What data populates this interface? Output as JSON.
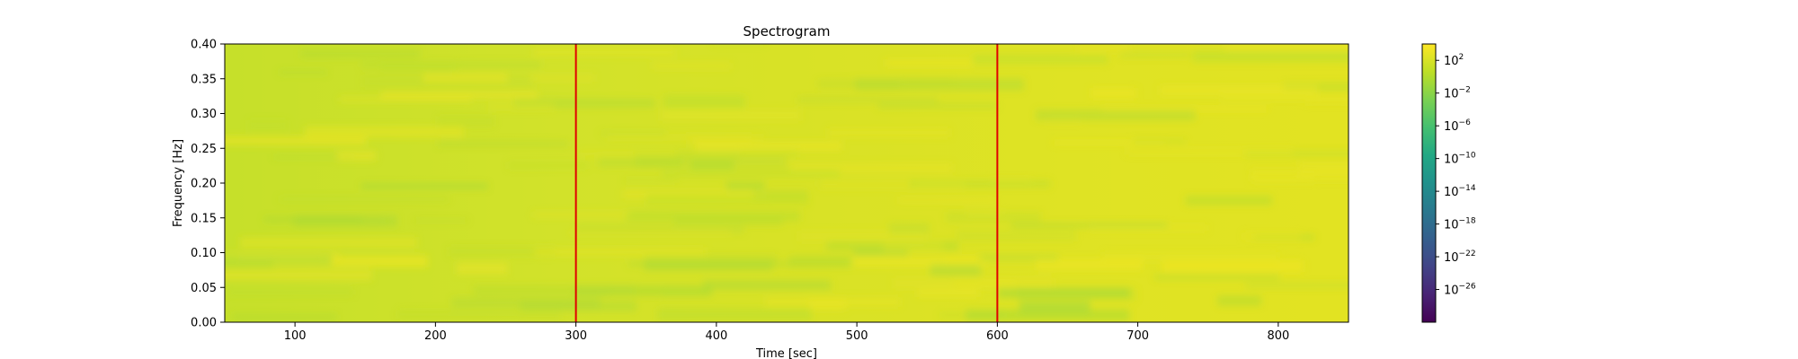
{
  "chart_data": {
    "type": "heatmap",
    "title": "Spectrogram",
    "xlabel": "Time [sec]",
    "ylabel": "Frequency [Hz]",
    "xlim": [
      50,
      850
    ],
    "ylim": [
      0.0,
      0.4
    ],
    "x_ticks": [
      100,
      200,
      300,
      400,
      500,
      600,
      700,
      800
    ],
    "y_ticks": [
      "0.00",
      "0.05",
      "0.10",
      "0.15",
      "0.20",
      "0.25",
      "0.30",
      "0.35",
      "0.40"
    ],
    "colormap": "viridis",
    "colorbar": {
      "scale": "log",
      "min_exponent": -30,
      "max_exponent": 4,
      "tick_base": "10",
      "tick_exponents": [
        "2",
        "−2",
        "−6",
        "−10",
        "−14",
        "−18",
        "−22",
        "−26"
      ]
    },
    "vertical_lines": [
      {
        "x": 300,
        "color": "#e00000"
      },
      {
        "x": 600,
        "color": "#e00000"
      }
    ],
    "power_description": "nearly uniform high power (~10^0 to 10^2) across all times and frequencies"
  }
}
